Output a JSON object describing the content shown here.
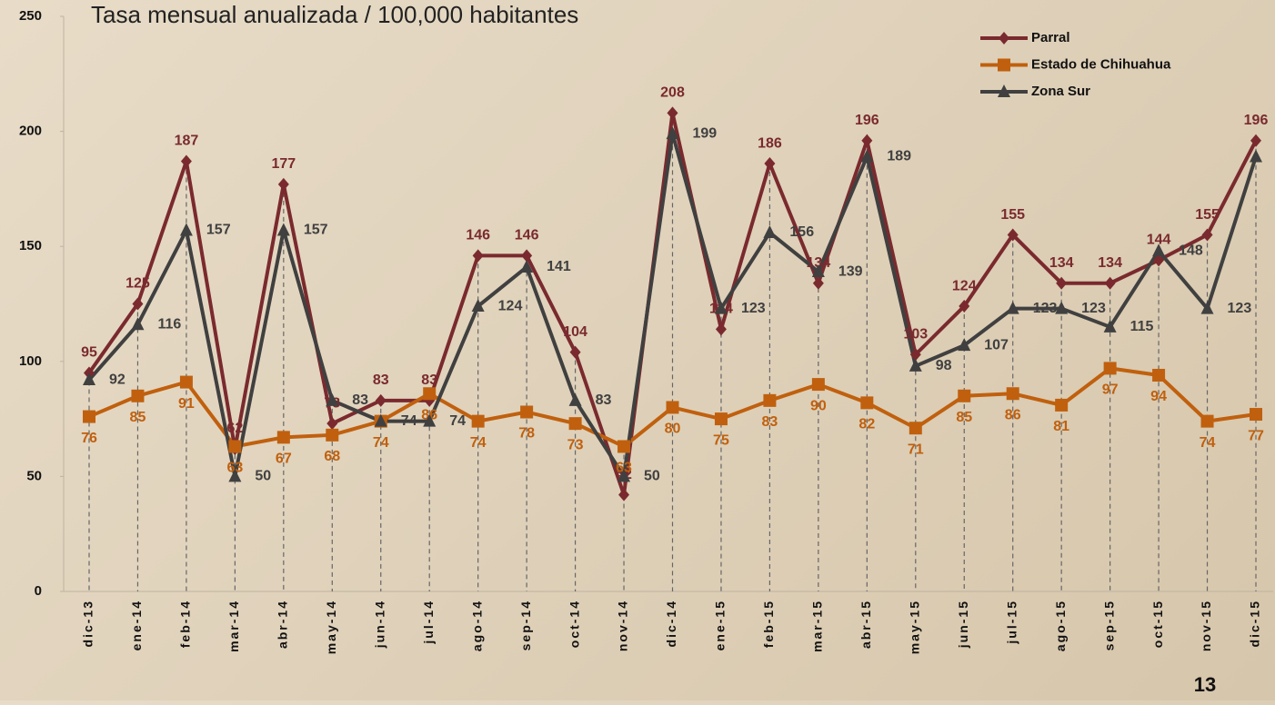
{
  "chart_data": {
    "type": "line",
    "title": "Tasa mensual anualizada / 100,000 habitantes",
    "page_number": "13",
    "categories": [
      "dic-13",
      "ene-14",
      "feb-14",
      "mar-14",
      "abr-14",
      "may-14",
      "jun-14",
      "jul-14",
      "ago-14",
      "sep-14",
      "oct-14",
      "nov-14",
      "dic-14",
      "ene-15",
      "feb-15",
      "mar-15",
      "abr-15",
      "may-15",
      "jun-15",
      "jul-15",
      "ago-15",
      "sep-15",
      "oct-15",
      "nov-15",
      "dic-15"
    ],
    "series": [
      {
        "name": "Parral",
        "color": "#7a2a2e",
        "marker": "diamond",
        "values": [
          95,
          125,
          187,
          62,
          177,
          73,
          83,
          83,
          146,
          146,
          104,
          42,
          208,
          114,
          186,
          134,
          196,
          103,
          124,
          155,
          134,
          134,
          144,
          155,
          196
        ]
      },
      {
        "name": "Estado de Chihuahua",
        "color": "#c0600e",
        "marker": "square",
        "values": [
          76,
          85,
          91,
          63,
          67,
          68,
          74,
          86,
          74,
          78,
          73,
          63,
          80,
          75,
          83,
          90,
          82,
          71,
          85,
          86,
          81,
          97,
          94,
          74,
          77
        ]
      },
      {
        "name": "Zona Sur",
        "color": "#404040",
        "marker": "triangle",
        "values": [
          92,
          116,
          157,
          50,
          157,
          83,
          74,
          74,
          124,
          141,
          83,
          50,
          199,
          123,
          156,
          139,
          189,
          98,
          107,
          123,
          123,
          115,
          148,
          123,
          189
        ]
      }
    ],
    "ylim": [
      0,
      250
    ],
    "yticks": [
      0,
      50,
      100,
      150,
      200,
      250
    ],
    "legend": "top-right",
    "drop_lines": true
  }
}
